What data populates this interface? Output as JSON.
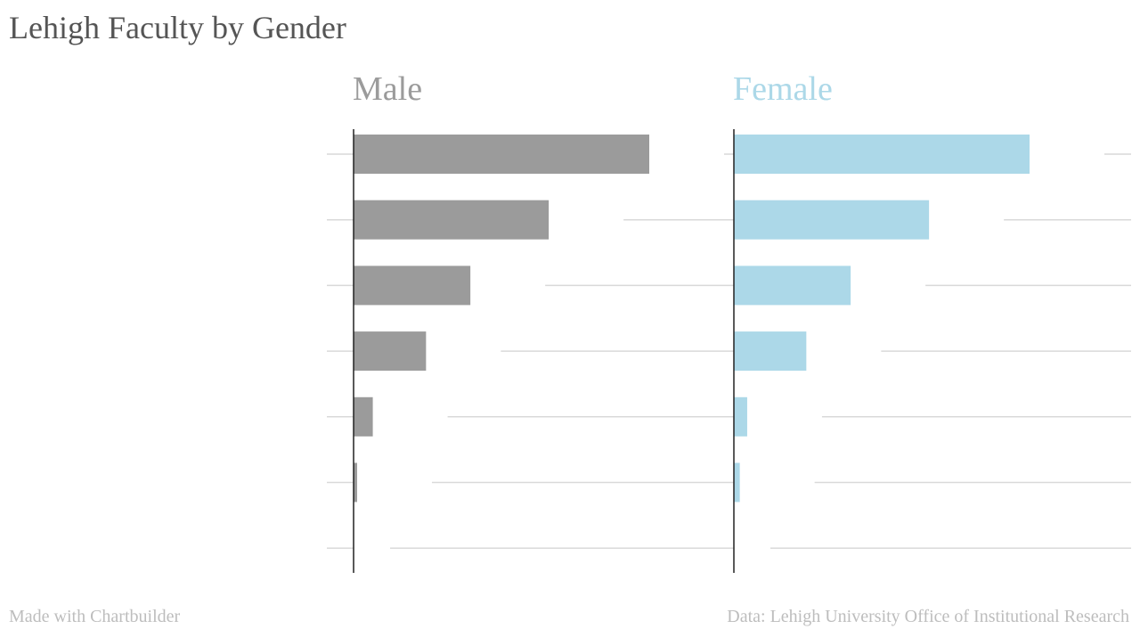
{
  "title": "Lehigh Faculty by Gender",
  "footer": {
    "credit": "Made with Chartbuilder",
    "source": "Data: Lehigh University Office of Institutional Research"
  },
  "colors": {
    "male": "#9b9b9b",
    "female": "#acd8e8",
    "gridline": "#d9d9d9",
    "axis": "#222222"
  },
  "chart_data": {
    "type": "bar",
    "orientation": "horizontal",
    "categories": [
      "",
      "",
      "",
      "",
      "",
      "",
      ""
    ],
    "panels": [
      {
        "name": "Male",
        "values": [
          100,
          66,
          39.5,
          24.5,
          6.5,
          1.2,
          0
        ]
      },
      {
        "name": "Female",
        "values": [
          100,
          66,
          39.5,
          24.5,
          4.5,
          2,
          0
        ]
      }
    ],
    "xlim": [
      0,
      100
    ],
    "grid": true,
    "legend": "panel titles above each panel"
  }
}
